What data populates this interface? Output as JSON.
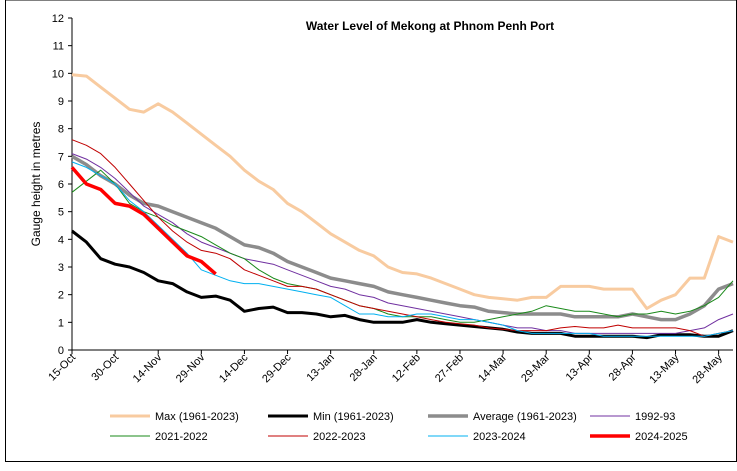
{
  "chart_data": {
    "type": "line",
    "title": "Water Level of Mekong at Phnom Penh Port",
    "y_label": "Gauge height in metres",
    "x": [
      "15-Oct",
      "20-Oct",
      "25-Oct",
      "30-Oct",
      "4-Nov",
      "9-Nov",
      "14-Nov",
      "19-Nov",
      "24-Nov",
      "29-Nov",
      "4-Dec",
      "9-Dec",
      "14-Dec",
      "19-Dec",
      "24-Dec",
      "29-Dec",
      "3-Jan",
      "8-Jan",
      "13-Jan",
      "18-Jan",
      "23-Jan",
      "28-Jan",
      "2-Feb",
      "7-Feb",
      "12-Feb",
      "17-Feb",
      "22-Feb",
      "27-Feb",
      "4-Mar",
      "9-Mar",
      "14-Mar",
      "19-Mar",
      "24-Mar",
      "29-Mar",
      "3-Apr",
      "8-Apr",
      "13-Apr",
      "18-Apr",
      "23-Apr",
      "28-Apr",
      "3-May",
      "8-May",
      "13-May",
      "18-May",
      "23-May",
      "28-May",
      "2-Jun"
    ],
    "xticks": [
      "15-Oct",
      "30-Oct",
      "14-Nov",
      "29-Nov",
      "14-Dec",
      "29-Dec",
      "13-Jan",
      "28-Jan",
      "12-Feb",
      "27-Feb",
      "14-Mar",
      "29-Mar",
      "13-Apr",
      "28-Apr",
      "13-May",
      "28-May"
    ],
    "ylim": [
      0,
      12
    ],
    "yticks": [
      0,
      1,
      2,
      3,
      4,
      5,
      6,
      7,
      8,
      9,
      10,
      11,
      12
    ],
    "series": [
      {
        "name": "Max (1961-2023)",
        "color": "#f8cba0",
        "values": [
          9.95,
          9.9,
          9.5,
          9.1,
          8.7,
          8.6,
          8.9,
          8.6,
          8.2,
          7.8,
          7.4,
          7.0,
          6.5,
          6.1,
          5.8,
          5.3,
          5.0,
          4.6,
          4.2,
          3.9,
          3.6,
          3.4,
          3.0,
          2.8,
          2.75,
          2.6,
          2.4,
          2.2,
          2.0,
          1.9,
          1.85,
          1.8,
          1.9,
          1.9,
          2.3,
          2.3,
          2.3,
          2.2,
          2.2,
          2.2,
          1.5,
          1.8,
          2.0,
          2.6,
          2.6,
          4.1,
          3.9
        ]
      },
      {
        "name": "Min (1961-2023)",
        "color": "#000000",
        "values": [
          4.3,
          3.9,
          3.3,
          3.1,
          3.0,
          2.8,
          2.5,
          2.4,
          2.1,
          1.9,
          1.95,
          1.8,
          1.4,
          1.5,
          1.55,
          1.35,
          1.35,
          1.3,
          1.2,
          1.25,
          1.1,
          1.0,
          1.0,
          1.0,
          1.1,
          1.0,
          0.95,
          0.9,
          0.85,
          0.8,
          0.75,
          0.65,
          0.6,
          0.6,
          0.6,
          0.5,
          0.5,
          0.5,
          0.5,
          0.5,
          0.45,
          0.55,
          0.55,
          0.55,
          0.5,
          0.5,
          0.7
        ]
      },
      {
        "name": "Average (1961-2023)",
        "color": "#8c8c8c",
        "values": [
          7.0,
          6.7,
          6.3,
          6.0,
          5.6,
          5.3,
          5.2,
          5.0,
          4.8,
          4.6,
          4.4,
          4.1,
          3.8,
          3.7,
          3.5,
          3.2,
          3.0,
          2.8,
          2.6,
          2.5,
          2.4,
          2.3,
          2.1,
          2.0,
          1.9,
          1.8,
          1.7,
          1.6,
          1.55,
          1.4,
          1.35,
          1.3,
          1.3,
          1.3,
          1.3,
          1.2,
          1.2,
          1.2,
          1.2,
          1.3,
          1.2,
          1.1,
          1.1,
          1.3,
          1.6,
          2.2,
          2.4
        ]
      },
      {
        "name": "1992-93",
        "color": "#7030a0",
        "values": [
          7.1,
          6.9,
          6.6,
          6.2,
          5.7,
          5.2,
          4.9,
          4.6,
          4.2,
          3.9,
          3.7,
          3.5,
          3.3,
          3.2,
          3.1,
          2.9,
          2.7,
          2.5,
          2.3,
          2.2,
          2.0,
          1.9,
          1.7,
          1.6,
          1.5,
          1.4,
          1.3,
          1.2,
          1.1,
          1.0,
          0.9,
          0.8,
          0.8,
          0.7,
          0.7,
          0.6,
          0.6,
          0.6,
          0.6,
          0.6,
          0.6,
          0.6,
          0.6,
          0.7,
          0.8,
          1.1,
          1.3
        ]
      },
      {
        "name": "2021-2022",
        "color": "#1a8a1a",
        "values": [
          5.7,
          6.1,
          6.5,
          6.0,
          5.3,
          5.0,
          4.8,
          4.5,
          4.3,
          4.1,
          3.8,
          3.5,
          3.3,
          2.9,
          2.6,
          2.4,
          2.3,
          2.2,
          2.0,
          1.8,
          1.6,
          1.5,
          1.3,
          1.2,
          1.2,
          1.2,
          1.1,
          1.0,
          1.0,
          1.1,
          1.2,
          1.3,
          1.4,
          1.6,
          1.5,
          1.4,
          1.4,
          1.3,
          1.2,
          1.3,
          1.3,
          1.4,
          1.3,
          1.4,
          1.6,
          1.9,
          2.5
        ]
      },
      {
        "name": "2022-2023",
        "color": "#c00000",
        "values": [
          7.6,
          7.4,
          7.1,
          6.6,
          6.0,
          5.4,
          4.8,
          4.3,
          3.9,
          3.6,
          3.5,
          3.3,
          2.9,
          2.7,
          2.5,
          2.3,
          2.3,
          2.2,
          2.0,
          1.8,
          1.6,
          1.5,
          1.4,
          1.3,
          1.2,
          1.1,
          1.0,
          0.95,
          0.9,
          0.8,
          0.75,
          0.7,
          0.7,
          0.7,
          0.8,
          0.85,
          0.8,
          0.8,
          0.9,
          0.8,
          0.8,
          0.8,
          0.8,
          0.7,
          0.5,
          0.6,
          0.7
        ]
      },
      {
        "name": "2023-2024",
        "color": "#00b0f0",
        "values": [
          6.8,
          6.6,
          6.3,
          6.0,
          5.4,
          5.0,
          4.5,
          4.0,
          3.5,
          2.9,
          2.7,
          2.5,
          2.4,
          2.4,
          2.3,
          2.2,
          2.1,
          2.0,
          1.9,
          1.6,
          1.3,
          1.3,
          1.2,
          1.2,
          1.3,
          1.3,
          1.2,
          1.1,
          1.1,
          1.0,
          0.9,
          0.7,
          0.6,
          0.6,
          0.6,
          0.6,
          0.6,
          0.5,
          0.5,
          0.5,
          0.5,
          0.5,
          0.5,
          0.5,
          0.5,
          0.6,
          0.7
        ]
      },
      {
        "name": "2024-2025",
        "color": "#ff0000",
        "values": [
          6.6,
          6.0,
          5.8,
          5.3,
          5.2,
          4.9,
          4.4,
          3.9,
          3.4,
          3.2,
          2.75,
          null,
          null,
          null,
          null,
          null,
          null,
          null,
          null,
          null,
          null,
          null,
          null,
          null,
          null,
          null,
          null,
          null,
          null,
          null,
          null,
          null,
          null,
          null,
          null,
          null,
          null,
          null,
          null,
          null,
          null,
          null,
          null,
          null,
          null,
          null,
          null
        ]
      }
    ]
  }
}
